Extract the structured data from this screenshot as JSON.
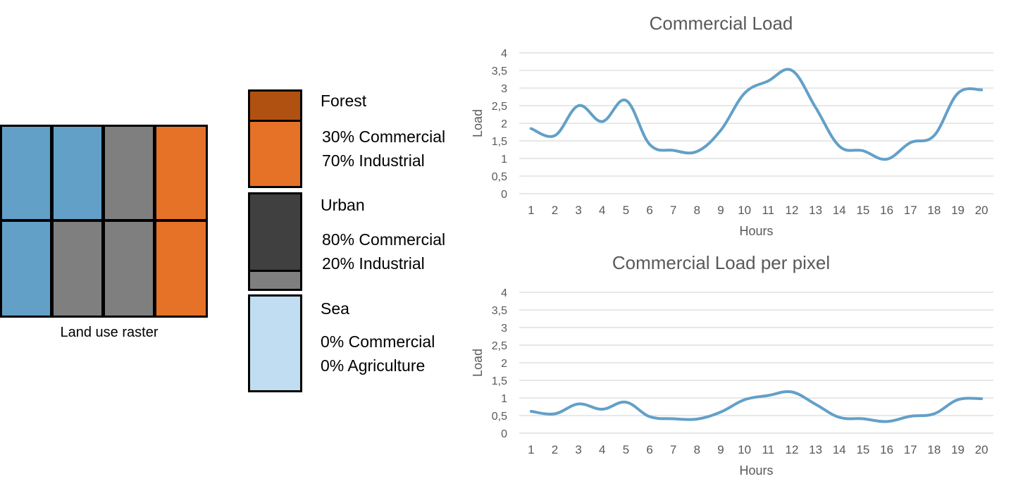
{
  "raster": {
    "caption": "Land use raster",
    "cells": [
      [
        "sea",
        "sea",
        "urban",
        "forest"
      ],
      [
        "sea",
        "urban",
        "urban",
        "forest"
      ]
    ],
    "colors": {
      "sea": "#62a0c8",
      "urban": "#7f7f7f",
      "forest": "#e57226"
    }
  },
  "legend": [
    {
      "title": "Forest",
      "line1": "30% Commercial",
      "line2": "70% Industrial",
      "segments": [
        {
          "color": "#b05111",
          "share": 0.3
        },
        {
          "color": "#e57226",
          "share": 0.7
        }
      ]
    },
    {
      "title": "Urban",
      "line1": "80% Commercial",
      "line2": "20% Industrial",
      "segments": [
        {
          "color": "#404040",
          "share": 0.8
        },
        {
          "color": "#7f7f7f",
          "share": 0.2
        }
      ]
    },
    {
      "title": "Sea",
      "line1": "0% Commercial",
      "line2": "0% Agriculture",
      "segments": [
        {
          "color": "#c0ddf1",
          "share": 1.0
        }
      ]
    }
  ],
  "chart_data": [
    {
      "type": "line",
      "title": "Commercial Load",
      "xlabel": "Hours",
      "ylabel": "Load",
      "x": [
        "1",
        "2",
        "3",
        "4",
        "5",
        "6",
        "7",
        "8",
        "9",
        "10",
        "11",
        "12",
        "13",
        "14",
        "15",
        "16",
        "17",
        "18",
        "19",
        "20"
      ],
      "series": [
        {
          "values": [
            1.85,
            1.65,
            2.5,
            2.05,
            2.65,
            1.4,
            1.23,
            1.2,
            1.8,
            2.85,
            3.2,
            3.5,
            2.45,
            1.35,
            1.22,
            0.98,
            1.45,
            1.65,
            2.85,
            2.95
          ],
          "color": "#62a0c8"
        }
      ],
      "ylim": [
        0,
        4
      ],
      "yticks": [
        "0",
        "0,5",
        "1",
        "1,5",
        "2",
        "2,5",
        "3",
        "3,5",
        "4"
      ],
      "grid": true
    },
    {
      "type": "line",
      "title": "Commercial Load per pixel",
      "xlabel": "Hours",
      "ylabel": "Load",
      "x": [
        "1",
        "2",
        "3",
        "4",
        "5",
        "6",
        "7",
        "8",
        "9",
        "10",
        "11",
        "12",
        "13",
        "14",
        "15",
        "16",
        "17",
        "18",
        "19",
        "20"
      ],
      "series": [
        {
          "values": [
            0.62,
            0.55,
            0.83,
            0.68,
            0.88,
            0.47,
            0.41,
            0.4,
            0.6,
            0.95,
            1.07,
            1.17,
            0.82,
            0.45,
            0.41,
            0.33,
            0.48,
            0.55,
            0.95,
            0.98
          ],
          "color": "#62a0c8"
        }
      ],
      "ylim": [
        0,
        4
      ],
      "yticks": [
        "0",
        "0,5",
        "1",
        "1,5",
        "2",
        "2,5",
        "3",
        "3,5",
        "4"
      ],
      "grid": true
    }
  ]
}
